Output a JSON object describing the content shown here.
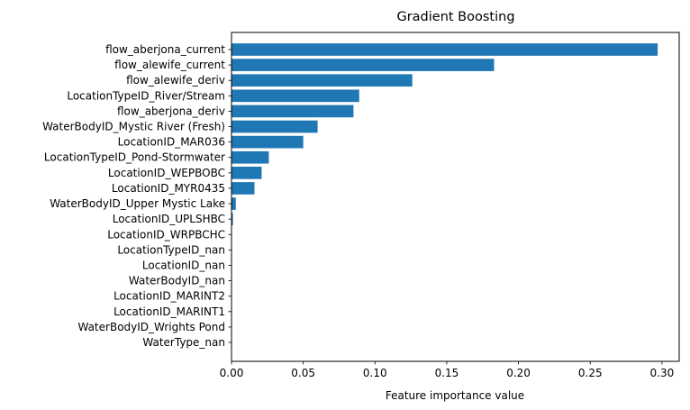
{
  "chart_data": {
    "type": "bar",
    "orientation": "horizontal",
    "title": "Gradient Boosting",
    "xlabel": "Feature importance value",
    "ylabel": "",
    "xlim": [
      0,
      0.312
    ],
    "xticks": [
      0.0,
      0.05,
      0.1,
      0.15,
      0.2,
      0.25,
      0.3
    ],
    "xtick_labels": [
      "0.00",
      "0.05",
      "0.10",
      "0.15",
      "0.20",
      "0.25",
      "0.30"
    ],
    "bar_color": "#1f77b4",
    "grid": false,
    "categories": [
      "flow_aberjona_current",
      "flow_alewife_current",
      "flow_alewife_deriv",
      "LocationTypeID_River/Stream",
      "flow_aberjona_deriv",
      "WaterBodyID_Mystic River (Fresh)",
      "LocationID_MAR036",
      "LocationTypeID_Pond-Stormwater",
      "LocationID_WEPBOBC",
      "LocationID_MYR0435",
      "WaterBodyID_Upper Mystic Lake",
      "LocationID_UPLSHBC",
      "LocationID_WRPBCHC",
      "LocationTypeID_nan",
      "LocationID_nan",
      "WaterBodyID_nan",
      "LocationID_MARINT2",
      "LocationID_MARINT1",
      "WaterBodyID_Wrights Pond",
      "WaterType_nan"
    ],
    "values": [
      0.297,
      0.183,
      0.126,
      0.089,
      0.085,
      0.06,
      0.05,
      0.026,
      0.021,
      0.016,
      0.003,
      0.001,
      0.0,
      0.0,
      0.0,
      0.0,
      0.0,
      0.0,
      0.0,
      0.0
    ]
  }
}
